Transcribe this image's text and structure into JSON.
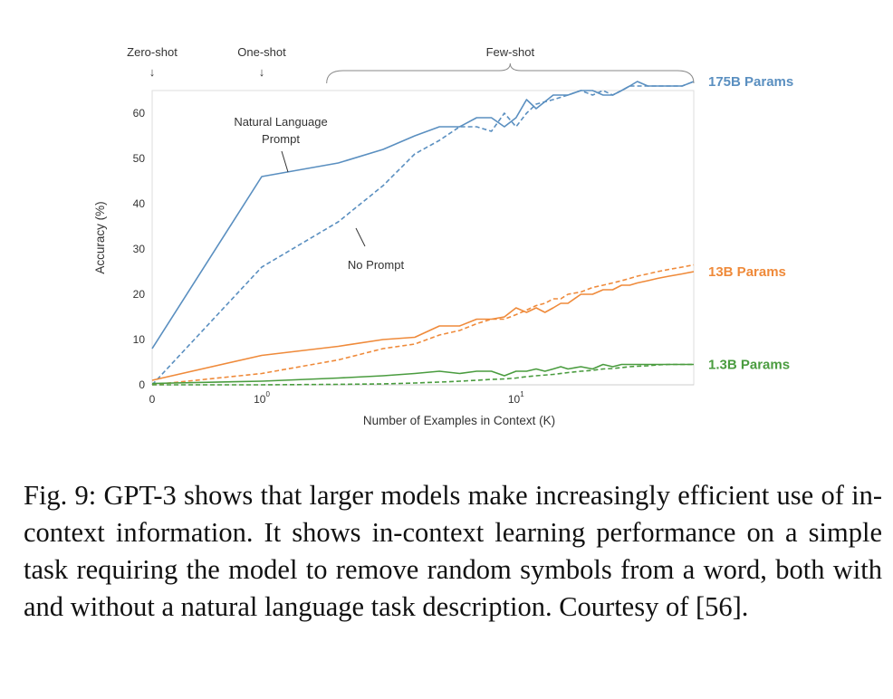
{
  "caption": "Fig. 9: GPT-3 shows that larger models make increasingly efficient use of in-context information. It shows in-context learning performance on a simple task requiring the model to remove random symbols from a word, both with and without a natural language task description. Courtesy of [56].",
  "chart_data": {
    "type": "line",
    "xlabel": "Number of Examples in Context  (K)",
    "ylabel": "Accuracy (%)",
    "x_scale": "symlog",
    "xlim": [
      0,
      50
    ],
    "ylim": [
      0,
      65
    ],
    "y_ticks": [
      "0",
      "10",
      "20",
      "30",
      "40",
      "50",
      "60"
    ],
    "x_ticks": [
      {
        "value": 0,
        "base": "0",
        "exp": ""
      },
      {
        "value": 1,
        "base": "10",
        "exp": "0"
      },
      {
        "value": 10,
        "base": "10",
        "exp": "1"
      }
    ],
    "grid": false,
    "regions": [
      {
        "label": "Zero-shot",
        "marker": "↓",
        "at": 0
      },
      {
        "label": "One-shot",
        "marker": "↓",
        "at": 1
      },
      {
        "label": "Few-shot",
        "from": 1.8,
        "to": 50
      }
    ],
    "annotations": [
      {
        "lines": [
          "Natural Language",
          "Prompt"
        ],
        "points_to": "175B Params, with prompt",
        "x": 1.2
      },
      {
        "lines": [
          "No Prompt"
        ],
        "points_to": "175B Params, no prompt",
        "x": 5
      }
    ],
    "series": [
      {
        "name": "175B Params",
        "color": "#5a8fc0",
        "style": "solid",
        "points": [
          [
            0,
            8
          ],
          [
            1,
            46
          ],
          [
            2,
            49
          ],
          [
            3,
            52
          ],
          [
            4,
            55
          ],
          [
            5,
            57
          ],
          [
            6,
            57
          ],
          [
            7,
            59
          ],
          [
            8,
            59
          ],
          [
            9,
            57
          ],
          [
            10,
            59
          ],
          [
            11,
            63
          ],
          [
            12,
            61
          ],
          [
            14,
            64
          ],
          [
            16,
            64
          ],
          [
            18,
            65
          ],
          [
            20,
            65
          ],
          [
            22,
            64
          ],
          [
            24,
            64
          ],
          [
            26,
            65
          ],
          [
            28,
            66
          ],
          [
            30,
            67
          ],
          [
            33,
            66
          ],
          [
            36,
            66
          ],
          [
            40,
            66
          ],
          [
            45,
            66
          ],
          [
            50,
            67
          ]
        ]
      },
      {
        "name": "175B Params, no prompt",
        "color": "#5a8fc0",
        "style": "dashed",
        "points": [
          [
            0,
            0
          ],
          [
            1,
            26
          ],
          [
            2,
            36
          ],
          [
            3,
            44
          ],
          [
            4,
            51
          ],
          [
            5,
            54
          ],
          [
            6,
            57
          ],
          [
            7,
            57
          ],
          [
            8,
            56
          ],
          [
            9,
            60
          ],
          [
            10,
            57
          ],
          [
            11,
            60
          ],
          [
            12,
            62
          ],
          [
            14,
            63
          ],
          [
            16,
            64
          ],
          [
            18,
            65
          ],
          [
            20,
            64
          ],
          [
            22,
            65
          ],
          [
            24,
            64
          ],
          [
            26,
            65
          ],
          [
            28,
            66
          ],
          [
            30,
            66
          ],
          [
            33,
            66
          ],
          [
            36,
            66
          ],
          [
            40,
            66
          ],
          [
            45,
            66
          ],
          [
            50,
            67
          ]
        ]
      },
      {
        "name": "13B Params",
        "color": "#ef8a3a",
        "style": "solid",
        "points": [
          [
            0,
            1
          ],
          [
            1,
            6.5
          ],
          [
            2,
            8.5
          ],
          [
            3,
            10
          ],
          [
            4,
            10.5
          ],
          [
            5,
            13
          ],
          [
            6,
            13
          ],
          [
            7,
            14.5
          ],
          [
            8,
            14.5
          ],
          [
            9,
            15
          ],
          [
            10,
            17
          ],
          [
            11,
            16
          ],
          [
            12,
            17
          ],
          [
            13,
            16
          ],
          [
            14,
            17
          ],
          [
            15,
            18
          ],
          [
            16,
            18
          ],
          [
            18,
            20
          ],
          [
            20,
            20
          ],
          [
            22,
            21
          ],
          [
            24,
            21
          ],
          [
            26,
            22
          ],
          [
            28,
            22
          ],
          [
            30,
            22.5
          ],
          [
            33,
            23
          ],
          [
            36,
            23.5
          ],
          [
            40,
            24
          ],
          [
            45,
            24.5
          ],
          [
            50,
            25
          ]
        ]
      },
      {
        "name": "13B Params, no prompt",
        "color": "#ef8a3a",
        "style": "dashed",
        "points": [
          [
            0,
            0
          ],
          [
            1,
            2.5
          ],
          [
            2,
            5.5
          ],
          [
            3,
            8
          ],
          [
            4,
            9
          ],
          [
            5,
            11
          ],
          [
            6,
            12
          ],
          [
            7,
            13.5
          ],
          [
            8,
            14.5
          ],
          [
            9,
            14.5
          ],
          [
            10,
            15.5
          ],
          [
            11,
            16.5
          ],
          [
            12,
            17.5
          ],
          [
            13,
            18
          ],
          [
            14,
            19
          ],
          [
            15,
            19
          ],
          [
            16,
            20
          ],
          [
            18,
            20.5
          ],
          [
            20,
            21.5
          ],
          [
            22,
            22
          ],
          [
            24,
            22.5
          ],
          [
            26,
            23
          ],
          [
            28,
            23.5
          ],
          [
            30,
            24
          ],
          [
            33,
            24.5
          ],
          [
            36,
            25
          ],
          [
            40,
            25.5
          ],
          [
            45,
            26
          ],
          [
            50,
            26.5
          ]
        ]
      },
      {
        "name": "1.3B Params",
        "color": "#4a9c3f",
        "style": "solid",
        "points": [
          [
            0,
            0.3
          ],
          [
            1,
            0.8
          ],
          [
            2,
            1.5
          ],
          [
            3,
            2
          ],
          [
            4,
            2.5
          ],
          [
            5,
            3
          ],
          [
            6,
            2.5
          ],
          [
            7,
            3
          ],
          [
            8,
            3
          ],
          [
            9,
            2
          ],
          [
            10,
            3
          ],
          [
            11,
            3
          ],
          [
            12,
            3.5
          ],
          [
            13,
            3
          ],
          [
            14,
            3.5
          ],
          [
            15,
            4
          ],
          [
            16,
            3.5
          ],
          [
            18,
            4
          ],
          [
            20,
            3.5
          ],
          [
            22,
            4.5
          ],
          [
            24,
            4
          ],
          [
            26,
            4.5
          ],
          [
            28,
            4.5
          ],
          [
            30,
            4.5
          ],
          [
            33,
            4.5
          ],
          [
            36,
            4.5
          ],
          [
            40,
            4.5
          ],
          [
            45,
            4.5
          ],
          [
            50,
            4.5
          ]
        ]
      },
      {
        "name": "1.3B Params, no prompt",
        "color": "#4a9c3f",
        "style": "dashed",
        "points": [
          [
            0,
            0
          ],
          [
            1,
            0
          ],
          [
            2,
            0.1
          ],
          [
            3,
            0.2
          ],
          [
            4,
            0.4
          ],
          [
            5,
            0.6
          ],
          [
            6,
            0.8
          ],
          [
            7,
            1
          ],
          [
            8,
            1.2
          ],
          [
            9,
            1.3
          ],
          [
            10,
            1.5
          ],
          [
            11,
            1.8
          ],
          [
            12,
            2
          ],
          [
            14,
            2.3
          ],
          [
            16,
            2.7
          ],
          [
            18,
            3
          ],
          [
            20,
            3.2
          ],
          [
            22,
            3.5
          ],
          [
            24,
            3.6
          ],
          [
            26,
            3.8
          ],
          [
            28,
            4
          ],
          [
            30,
            4.1
          ],
          [
            33,
            4.2
          ],
          [
            36,
            4.4
          ],
          [
            40,
            4.5
          ],
          [
            45,
            4.5
          ],
          [
            50,
            4.5
          ]
        ]
      }
    ]
  }
}
